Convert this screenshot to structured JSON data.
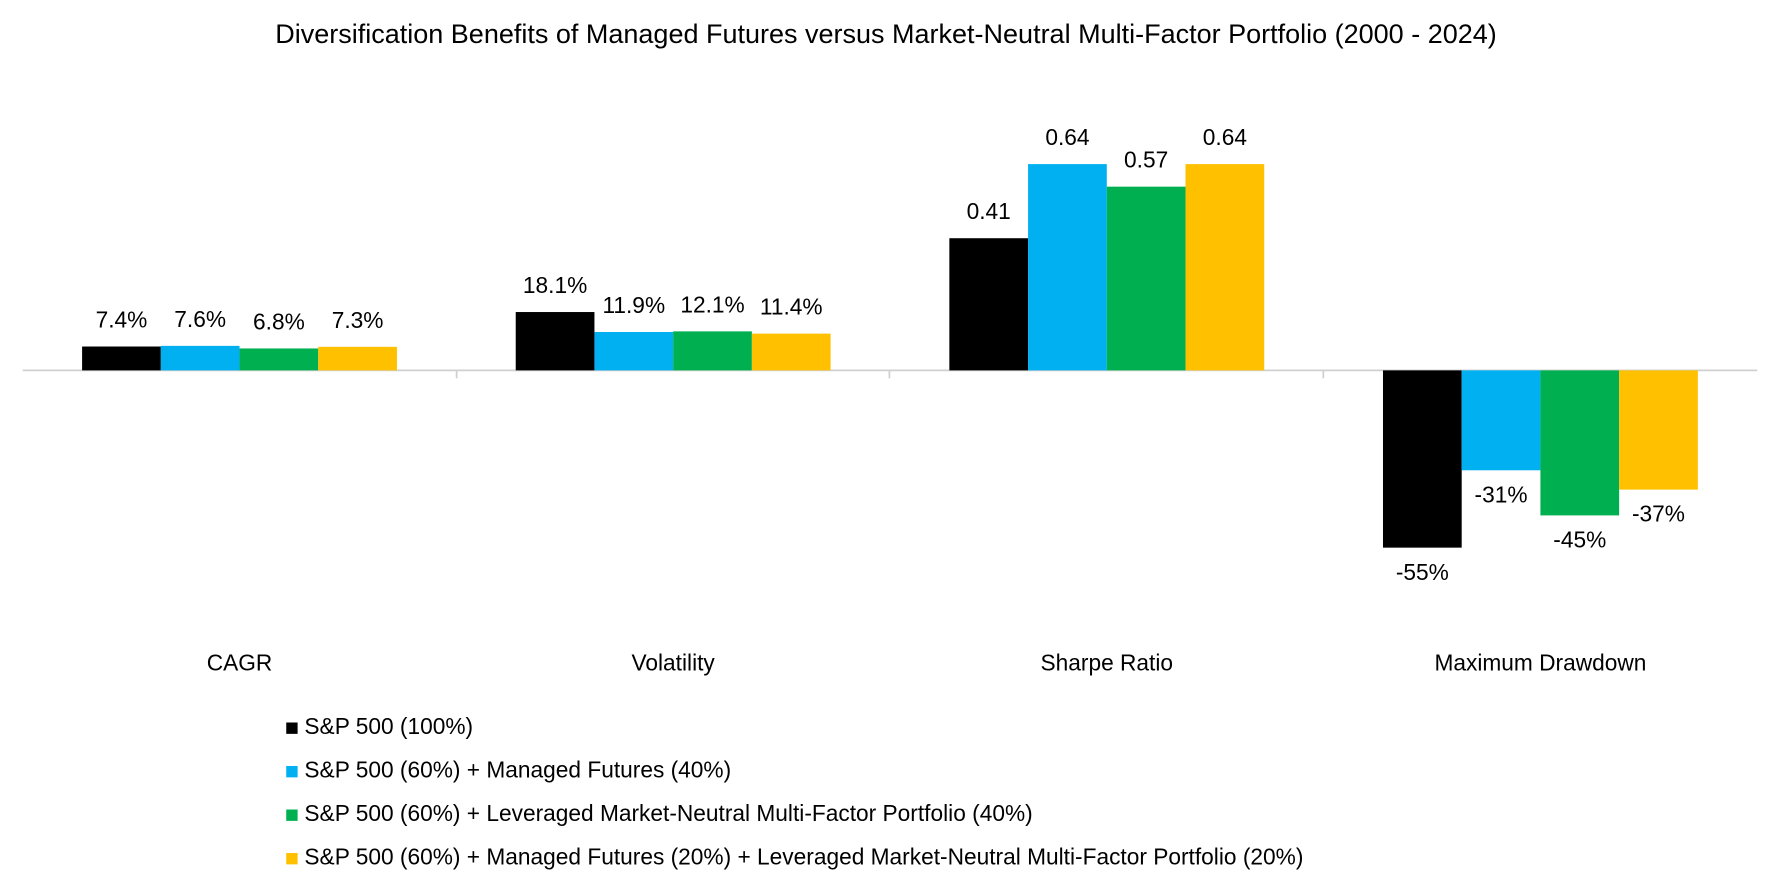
{
  "chart_data": {
    "type": "bar",
    "title": "Diversification Benefits of Managed Futures versus Market-Neutral Multi-Factor Portfolio (2000 - 2024)",
    "categories": [
      "CAGR",
      "Volatility",
      "Sharpe Ratio",
      "Maximum Drawdown"
    ],
    "series": [
      {
        "name": "S&P 500 (100%)",
        "color": "#000000",
        "values": [
          0.074,
          0.181,
          0.41,
          -0.55
        ],
        "value_labels": [
          "7.4%",
          "18.1%",
          "0.41",
          "-55%"
        ]
      },
      {
        "name": "S&P 500 (60%) + Managed Futures (40%)",
        "color": "#00b0f0",
        "values": [
          0.076,
          0.119,
          0.64,
          -0.31
        ],
        "value_labels": [
          "7.6%",
          "11.9%",
          "0.64",
          "-31%"
        ]
      },
      {
        "name": "S&P 500 (60%) + Leveraged Market-Neutral Multi-Factor Portfolio (40%)",
        "color": "#00b050",
        "values": [
          0.068,
          0.121,
          0.57,
          -0.45
        ],
        "value_labels": [
          "6.8%",
          "12.1%",
          "0.57",
          "-45%"
        ]
      },
      {
        "name": "S&P 500 (60%) + Managed Futures (20%) + Leveraged Market-Neutral Multi-Factor Portfolio (20%)",
        "color": "#ffc000",
        "values": [
          0.073,
          0.114,
          0.64,
          -0.37
        ],
        "value_labels": [
          "7.3%",
          "11.4%",
          "0.64",
          "-37%"
        ]
      }
    ],
    "ylim": [
      -0.8,
      0.8
    ],
    "legend": "bottom"
  }
}
